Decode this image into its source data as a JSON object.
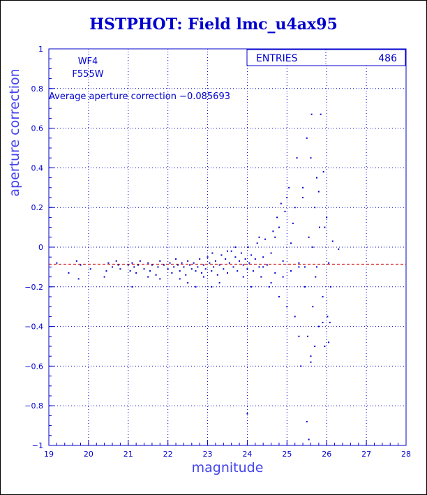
{
  "title": "HSTPHOT: Field lmc_u4ax95",
  "colors": {
    "axis": "#0000cc",
    "points": "#0000cc",
    "mean_line": "#cc0000",
    "grid": "#0000cc"
  },
  "chart_data": {
    "type": "scatter",
    "title": "HSTPHOT: Field lmc_u4ax95",
    "xlabel": "magnitude",
    "ylabel": "aperture correction",
    "xlim": [
      19,
      28
    ],
    "ylim": [
      -1,
      1
    ],
    "xticks": [
      "19",
      "20",
      "21",
      "22",
      "23",
      "24",
      "25",
      "26",
      "27",
      "28"
    ],
    "yticks": [
      "-1",
      "-0.8",
      "-0.6",
      "-0.4",
      "-0.2",
      "0",
      "0.2",
      "0.4",
      "0.6",
      "0.8",
      "1"
    ],
    "grid": "dotted",
    "stats": {
      "label": "ENTRIES",
      "value": "486"
    },
    "annotations": {
      "chip": "WF4",
      "filter": "F555W",
      "average_text": "Average aperture correction −0.085693"
    },
    "mean_line": {
      "y": -0.085693
    },
    "points": [
      [
        19.2,
        -0.08
      ],
      [
        19.5,
        -0.13
      ],
      [
        19.7,
        -0.07
      ],
      [
        19.75,
        -0.16
      ],
      [
        19.8,
        -0.09
      ],
      [
        20.05,
        -0.11
      ],
      [
        20.4,
        -0.15
      ],
      [
        20.45,
        -0.12
      ],
      [
        20.5,
        -0.08
      ],
      [
        20.6,
        -0.1
      ],
      [
        20.7,
        -0.07
      ],
      [
        20.75,
        -0.09
      ],
      [
        20.8,
        -0.11
      ],
      [
        21.0,
        -0.09
      ],
      [
        21.05,
        -0.12
      ],
      [
        21.1,
        -0.08
      ],
      [
        21.15,
        -0.1
      ],
      [
        21.2,
        -0.13
      ],
      [
        21.25,
        -0.09
      ],
      [
        21.3,
        -0.07
      ],
      [
        21.4,
        -0.11
      ],
      [
        21.5,
        -0.08
      ],
      [
        21.55,
        -0.12
      ],
      [
        21.6,
        -0.09
      ],
      [
        21.7,
        -0.14
      ],
      [
        21.75,
        -0.1
      ],
      [
        21.8,
        -0.07
      ],
      [
        21.9,
        -0.09
      ],
      [
        22.0,
        -0.11
      ],
      [
        22.05,
        -0.08
      ],
      [
        22.1,
        -0.13
      ],
      [
        22.15,
        -0.1
      ],
      [
        22.2,
        -0.06
      ],
      [
        22.25,
        -0.09
      ],
      [
        22.3,
        -0.12
      ],
      [
        22.35,
        -0.08
      ],
      [
        22.4,
        -0.1
      ],
      [
        22.45,
        -0.14
      ],
      [
        22.5,
        -0.07
      ],
      [
        22.55,
        -0.09
      ],
      [
        22.6,
        -0.11
      ],
      [
        22.65,
        -0.08
      ],
      [
        22.7,
        -0.12
      ],
      [
        22.75,
        -0.1
      ],
      [
        22.8,
        -0.06
      ],
      [
        22.85,
        -0.13
      ],
      [
        22.9,
        -0.09
      ],
      [
        22.95,
        -0.11
      ],
      [
        23.0,
        -0.05
      ],
      [
        23.05,
        -0.08
      ],
      [
        23.1,
        -0.12
      ],
      [
        23.12,
        -0.03
      ],
      [
        23.15,
        -0.1
      ],
      [
        23.2,
        -0.07
      ],
      [
        23.25,
        -0.14
      ],
      [
        23.3,
        -0.09
      ],
      [
        23.35,
        -0.04
      ],
      [
        23.4,
        -0.11
      ],
      [
        23.45,
        -0.06
      ],
      [
        23.5,
        -0.13
      ],
      [
        23.55,
        -0.08
      ],
      [
        23.6,
        -0.02
      ],
      [
        23.65,
        -0.1
      ],
      [
        23.7,
        -0.05
      ],
      [
        23.75,
        -0.12
      ],
      [
        23.8,
        -0.07
      ],
      [
        23.85,
        -0.03
      ],
      [
        23.9,
        -0.09
      ],
      [
        23.95,
        -0.06
      ],
      [
        24.0,
        -0.11
      ],
      [
        24.02,
        0.0
      ],
      [
        24.05,
        -0.08
      ],
      [
        24.1,
        -0.04
      ],
      [
        24.15,
        -0.12
      ],
      [
        24.2,
        -0.06
      ],
      [
        24.25,
        0.02
      ],
      [
        24.3,
        -0.1
      ],
      [
        24.35,
        -0.15
      ],
      [
        24.4,
        -0.05
      ],
      [
        24.45,
        0.04
      ],
      [
        24.5,
        -0.09
      ],
      [
        24.55,
        -0.2
      ],
      [
        24.6,
        -0.03
      ],
      [
        24.65,
        0.08
      ],
      [
        24.7,
        -0.13
      ],
      [
        24.75,
        0.15
      ],
      [
        24.8,
        -0.25
      ],
      [
        24.85,
        0.22
      ],
      [
        24.9,
        -0.07
      ],
      [
        24.95,
        0.18
      ],
      [
        25.0,
        -0.3
      ],
      [
        25.05,
        0.3
      ],
      [
        25.1,
        -0.12
      ],
      [
        25.15,
        0.12
      ],
      [
        25.2,
        -0.35
      ],
      [
        25.25,
        0.45
      ],
      [
        25.3,
        -0.1
      ],
      [
        25.35,
        -0.6
      ],
      [
        25.4,
        0.25
      ],
      [
        25.45,
        -0.2
      ],
      [
        25.5,
        0.55
      ],
      [
        25.52,
        -0.45
      ],
      [
        25.55,
        0.05
      ],
      [
        25.6,
        -0.55
      ],
      [
        25.62,
        0.67
      ],
      [
        25.65,
        -0.3
      ],
      [
        25.7,
        0.2
      ],
      [
        25.72,
        -0.15
      ],
      [
        25.75,
        0.35
      ],
      [
        25.8,
        -0.4
      ],
      [
        25.82,
        0.1
      ],
      [
        25.85,
        0.67
      ],
      [
        25.9,
        -0.25
      ],
      [
        25.92,
        0.38
      ],
      [
        25.95,
        -0.5
      ],
      [
        26.0,
        0.15
      ],
      [
        26.02,
        -0.35
      ],
      [
        26.05,
        -0.08
      ],
      [
        26.1,
        -0.2
      ],
      [
        26.15,
        0.03
      ],
      [
        26.3,
        -0.01
      ],
      [
        24.0,
        -0.84
      ],
      [
        25.5,
        -0.88
      ],
      [
        25.55,
        -0.97
      ],
      [
        25.6,
        -0.58
      ],
      [
        25.3,
        -0.08
      ],
      [
        25.1,
        0.02
      ],
      [
        24.9,
        -0.15
      ],
      [
        24.7,
        0.05
      ],
      [
        24.6,
        -0.18
      ],
      [
        24.4,
        -0.1
      ],
      [
        24.3,
        0.05
      ],
      [
        24.1,
        -0.2
      ],
      [
        23.9,
        -0.15
      ],
      [
        23.7,
        0.0
      ],
      [
        23.5,
        -0.02
      ],
      [
        23.3,
        -0.18
      ],
      [
        23.1,
        -0.2
      ],
      [
        22.9,
        -0.15
      ],
      [
        22.7,
        -0.2
      ],
      [
        22.5,
        -0.18
      ],
      [
        22.3,
        -0.16
      ],
      [
        21.8,
        -0.16
      ],
      [
        21.5,
        -0.15
      ],
      [
        21.1,
        -0.2
      ],
      [
        25.7,
        -0.5
      ],
      [
        25.9,
        -0.38
      ],
      [
        26.08,
        -0.38
      ],
      [
        25.4,
        0.3
      ],
      [
        25.2,
        0.2
      ],
      [
        25.0,
        0.25
      ],
      [
        24.8,
        0.1
      ],
      [
        25.6,
        0.45
      ],
      [
        25.8,
        0.28
      ],
      [
        25.3,
        -0.45
      ],
      [
        25.45,
        -0.1
      ],
      [
        25.65,
        0.0
      ],
      [
        25.75,
        -0.1
      ],
      [
        25.95,
        0.1
      ],
      [
        26.05,
        -0.48
      ]
    ]
  }
}
